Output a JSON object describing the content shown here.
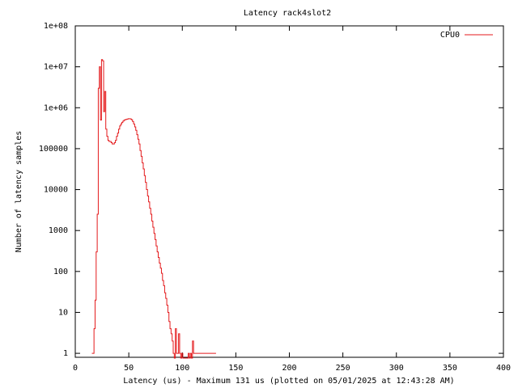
{
  "chart_data": {
    "type": "line",
    "title": "Latency rack4slot2",
    "xlabel": "Latency (us) - Maximum 131 us (plotted on 05/01/2025 at 12:43:28 AM)",
    "ylabel": "Number of latency samples",
    "xlim": [
      0,
      400
    ],
    "ylim": [
      0.8,
      100000000
    ],
    "yscale": "log",
    "grid": false,
    "legend_position": "top-right",
    "x_ticks": [
      0,
      50,
      100,
      150,
      200,
      250,
      300,
      350,
      400
    ],
    "y_ticks": [
      {
        "value": 1,
        "label": "1"
      },
      {
        "value": 10,
        "label": "10"
      },
      {
        "value": 100,
        "label": "100"
      },
      {
        "value": 1000,
        "label": "1000"
      },
      {
        "value": 10000,
        "label": "10000"
      },
      {
        "value": 100000,
        "label": "100000"
      },
      {
        "value": 1000000,
        "label": "1e+06"
      },
      {
        "value": 10000000,
        "label": "1e+07"
      },
      {
        "value": 100000000,
        "label": "1e+08"
      }
    ],
    "series": [
      {
        "name": "CPU0",
        "color": "#e41a1c",
        "step": true,
        "x": [
          16,
          17,
          18,
          19,
          20,
          21,
          22,
          23,
          24,
          25,
          26,
          27,
          28,
          29,
          30,
          31,
          32,
          33,
          34,
          35,
          36,
          37,
          38,
          39,
          40,
          41,
          42,
          43,
          44,
          45,
          46,
          47,
          48,
          49,
          50,
          51,
          52,
          53,
          54,
          55,
          56,
          57,
          58,
          59,
          60,
          61,
          62,
          63,
          64,
          65,
          66,
          67,
          68,
          69,
          70,
          71,
          72,
          73,
          74,
          75,
          76,
          77,
          78,
          79,
          80,
          81,
          82,
          83,
          84,
          85,
          86,
          87,
          88,
          89,
          90,
          91,
          92,
          93,
          94,
          95,
          96,
          97,
          98,
          99,
          100,
          101,
          102,
          103,
          104,
          105,
          106,
          107,
          108,
          109,
          110,
          111,
          112,
          113,
          114,
          115,
          116,
          117,
          118,
          119,
          120,
          121,
          122,
          123,
          124,
          125,
          126,
          127,
          128,
          129,
          130,
          131
        ],
        "y": [
          1,
          1,
          4,
          20,
          300,
          2500,
          3000000,
          10000000,
          500000,
          15000000,
          14000000,
          800000,
          2500000,
          300000,
          200000,
          160000,
          150000,
          150000,
          140000,
          130000,
          130000,
          140000,
          160000,
          200000,
          240000,
          300000,
          360000,
          400000,
          440000,
          470000,
          500000,
          510000,
          520000,
          530000,
          540000,
          540000,
          530000,
          510000,
          460000,
          400000,
          340000,
          280000,
          220000,
          170000,
          130000,
          90000,
          65000,
          45000,
          32000,
          22000,
          15000,
          10000,
          7000,
          5000,
          3500,
          2500,
          1700,
          1200,
          850,
          600,
          420,
          300,
          220,
          160,
          120,
          90,
          60,
          45,
          30,
          22,
          15,
          10,
          6,
          4,
          3,
          2,
          1,
          0,
          4,
          1,
          1,
          3,
          1,
          0,
          1,
          0,
          0,
          0,
          0,
          0,
          1,
          0,
          1,
          0,
          2,
          1,
          1,
          1,
          1,
          1,
          1,
          1,
          1,
          1,
          1,
          1,
          1,
          1,
          1,
          1,
          1,
          1,
          1,
          1,
          1,
          1
        ]
      }
    ]
  }
}
